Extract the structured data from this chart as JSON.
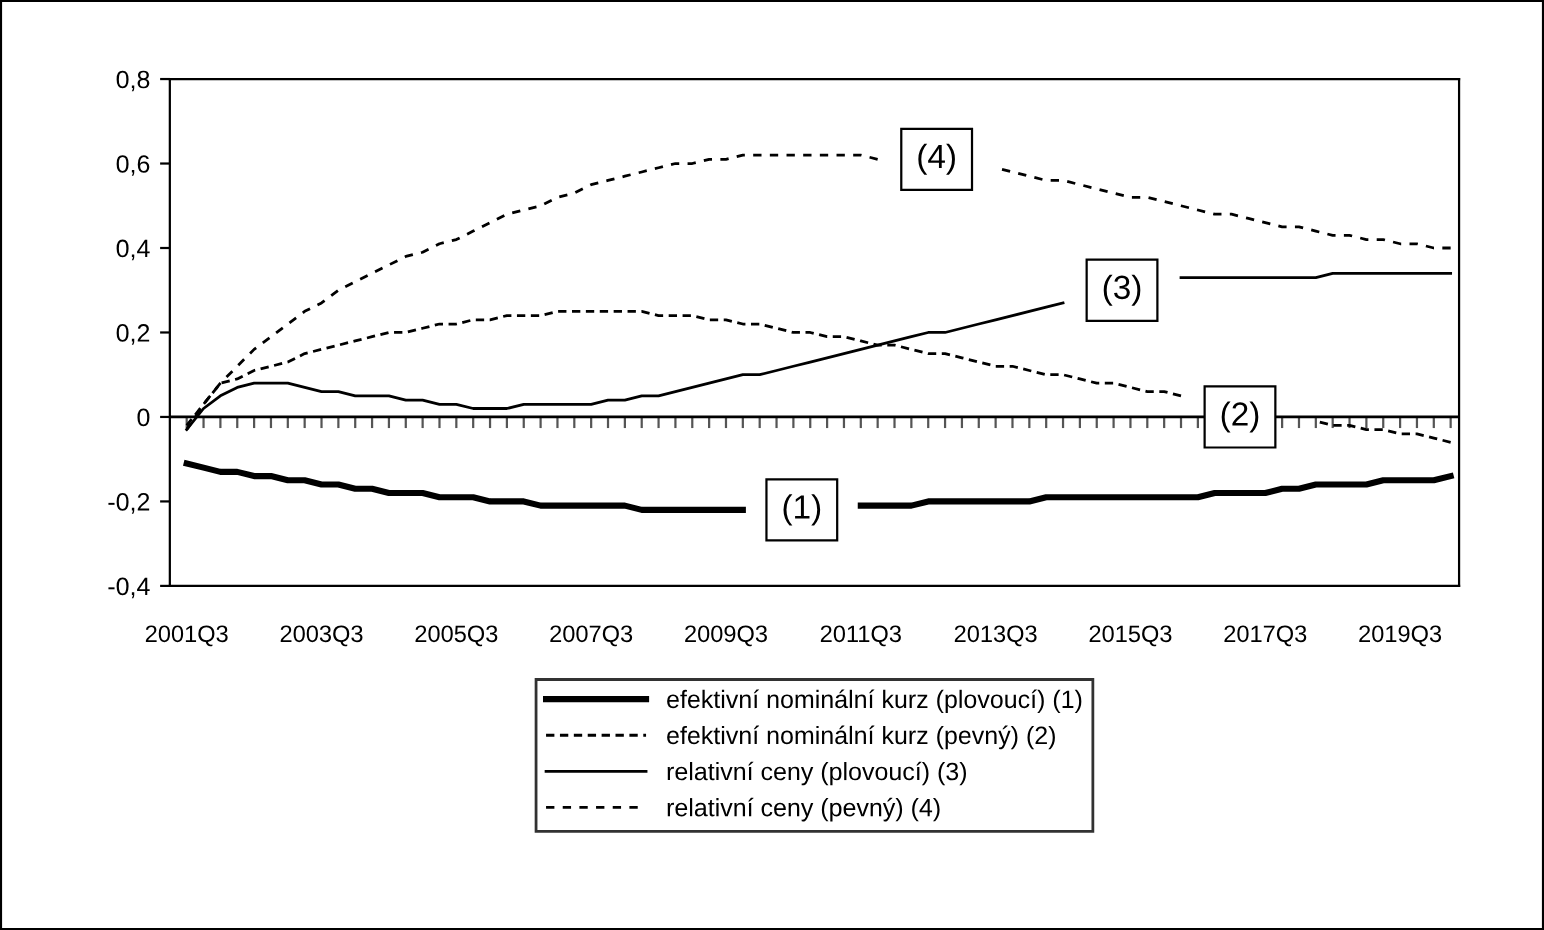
{
  "chart_data": {
    "type": "line",
    "categories": [
      "2001Q3",
      null,
      null,
      null,
      null,
      null,
      null,
      null,
      "2003Q3",
      null,
      null,
      null,
      null,
      null,
      null,
      null,
      "2005Q3",
      null,
      null,
      null,
      null,
      null,
      null,
      null,
      "2007Q3",
      null,
      null,
      null,
      null,
      null,
      null,
      null,
      "2009Q3",
      null,
      null,
      null,
      null,
      null,
      null,
      null,
      "2011Q3",
      null,
      null,
      null,
      null,
      null,
      null,
      null,
      "2013Q3",
      null,
      null,
      null,
      null,
      null,
      null,
      null,
      "2015Q3",
      null,
      null,
      null,
      null,
      null,
      null,
      null,
      "2017Q3",
      null,
      null,
      null,
      null,
      null,
      null,
      null,
      "2019Q3",
      null,
      null,
      null
    ],
    "series": [
      {
        "name": "efektivní nominální kurz (plovoucí) (1)",
        "color": "#000000",
        "line_style": "solid",
        "values": [
          -0.11,
          -0.12,
          -0.13,
          -0.13,
          -0.14,
          -0.14,
          -0.15,
          -0.15,
          -0.16,
          -0.16,
          -0.17,
          -0.17,
          -0.18,
          -0.18,
          -0.18,
          -0.19,
          -0.19,
          -0.19,
          -0.2,
          -0.2,
          -0.2,
          -0.21,
          -0.21,
          -0.21,
          -0.21,
          -0.21,
          -0.21,
          -0.22,
          -0.22,
          -0.22,
          -0.22,
          -0.22,
          -0.22,
          -0.22,
          null,
          null,
          null,
          null,
          null,
          null,
          -0.21,
          -0.21,
          -0.21,
          -0.21,
          -0.2,
          -0.2,
          -0.2,
          -0.2,
          -0.2,
          -0.2,
          -0.2,
          -0.19,
          -0.19,
          -0.19,
          -0.19,
          -0.19,
          -0.19,
          -0.19,
          -0.19,
          -0.19,
          -0.19,
          -0.18,
          -0.18,
          -0.18,
          -0.18,
          -0.17,
          -0.17,
          -0.16,
          -0.16,
          -0.16,
          -0.16,
          -0.15,
          -0.15,
          -0.15,
          -0.15,
          -0.14
        ]
      },
      {
        "name": "efektivní nominální kurz (pevný) (2)",
        "color": "#000000",
        "line_style": "dotted",
        "values": [
          -0.02,
          0.03,
          0.08,
          0.09,
          0.11,
          0.12,
          0.13,
          0.15,
          0.16,
          0.17,
          0.18,
          0.19,
          0.2,
          0.2,
          0.21,
          0.22,
          0.22,
          0.23,
          0.23,
          0.24,
          0.24,
          0.24,
          0.25,
          0.25,
          0.25,
          0.25,
          0.25,
          0.25,
          0.24,
          0.24,
          0.24,
          0.23,
          0.23,
          0.22,
          0.22,
          0.21,
          0.2,
          0.2,
          0.19,
          0.19,
          0.18,
          0.17,
          0.17,
          0.16,
          0.15,
          0.15,
          0.14,
          0.13,
          0.12,
          0.12,
          0.11,
          0.1,
          0.1,
          0.09,
          0.08,
          0.08,
          0.07,
          0.06,
          0.06,
          0.05,
          null,
          null,
          null,
          null,
          null,
          null,
          null,
          -0.01,
          -0.02,
          -0.02,
          -0.03,
          -0.03,
          -0.04,
          -0.04,
          -0.05,
          -0.06
        ]
      },
      {
        "name": "relativní ceny (plovoucí) (3)",
        "color": "#000000",
        "line_style": "solid",
        "values": [
          -0.03,
          0.02,
          0.05,
          0.07,
          0.08,
          0.08,
          0.08,
          0.07,
          0.06,
          0.06,
          0.05,
          0.05,
          0.05,
          0.04,
          0.04,
          0.03,
          0.03,
          0.02,
          0.02,
          0.02,
          0.03,
          0.03,
          0.03,
          0.03,
          0.03,
          0.04,
          0.04,
          0.05,
          0.05,
          0.06,
          0.07,
          0.08,
          0.09,
          0.1,
          0.1,
          0.11,
          0.12,
          0.13,
          0.14,
          0.15,
          0.16,
          0.17,
          0.18,
          0.19,
          0.2,
          0.2,
          0.21,
          0.22,
          0.23,
          0.24,
          0.25,
          0.26,
          0.27,
          null,
          null,
          null,
          null,
          null,
          null,
          0.33,
          0.33,
          0.33,
          0.33,
          0.33,
          0.33,
          0.33,
          0.33,
          0.33,
          0.34,
          0.34,
          0.34,
          0.34,
          0.34,
          0.34,
          0.34,
          0.34
        ]
      },
      {
        "name": "relativní ceny (pevný) (4)",
        "color": "#000000",
        "line_style": "dashed",
        "values": [
          -0.03,
          0.03,
          0.08,
          0.12,
          0.16,
          0.19,
          0.22,
          0.25,
          0.27,
          0.3,
          0.32,
          0.34,
          0.36,
          0.38,
          0.39,
          0.41,
          0.42,
          0.44,
          0.46,
          0.48,
          0.49,
          0.5,
          0.52,
          0.53,
          0.55,
          0.56,
          0.57,
          0.58,
          0.59,
          0.6,
          0.6,
          0.61,
          0.61,
          0.62,
          0.62,
          0.62,
          0.62,
          0.62,
          0.62,
          0.62,
          0.62,
          0.61,
          null,
          null,
          null,
          null,
          null,
          null,
          0.59,
          0.58,
          0.57,
          0.56,
          0.56,
          0.55,
          0.54,
          0.53,
          0.52,
          0.52,
          0.51,
          0.5,
          0.49,
          0.48,
          0.48,
          0.47,
          0.46,
          0.45,
          0.45,
          0.44,
          0.43,
          0.43,
          0.42,
          0.42,
          0.41,
          0.41,
          0.4,
          0.4
        ]
      }
    ],
    "ylim": [
      -0.4,
      0.8
    ],
    "yticks": [
      {
        "value": -0.4,
        "label": "-0,4"
      },
      {
        "value": -0.2,
        "label": "-0,2"
      },
      {
        "value": 0,
        "label": "0"
      },
      {
        "value": 0.2,
        "label": "0,2"
      },
      {
        "value": 0.4,
        "label": "0,4"
      },
      {
        "value": 0.6,
        "label": "0,6"
      },
      {
        "value": 0.8,
        "label": "0,8"
      }
    ],
    "annotations": [
      {
        "text": "(1)",
        "y": -0.22
      },
      {
        "text": "(4)",
        "y": 0.61
      },
      {
        "text": "(3)",
        "y": 0.3
      },
      {
        "text": "(2)",
        "y": 0.0
      }
    ],
    "ref_lines": [
      {
        "axis": "y",
        "value": 0,
        "color": "#000000",
        "line_style": "solid"
      }
    ],
    "grid": false,
    "legend": "bottom",
    "marker": "none"
  }
}
